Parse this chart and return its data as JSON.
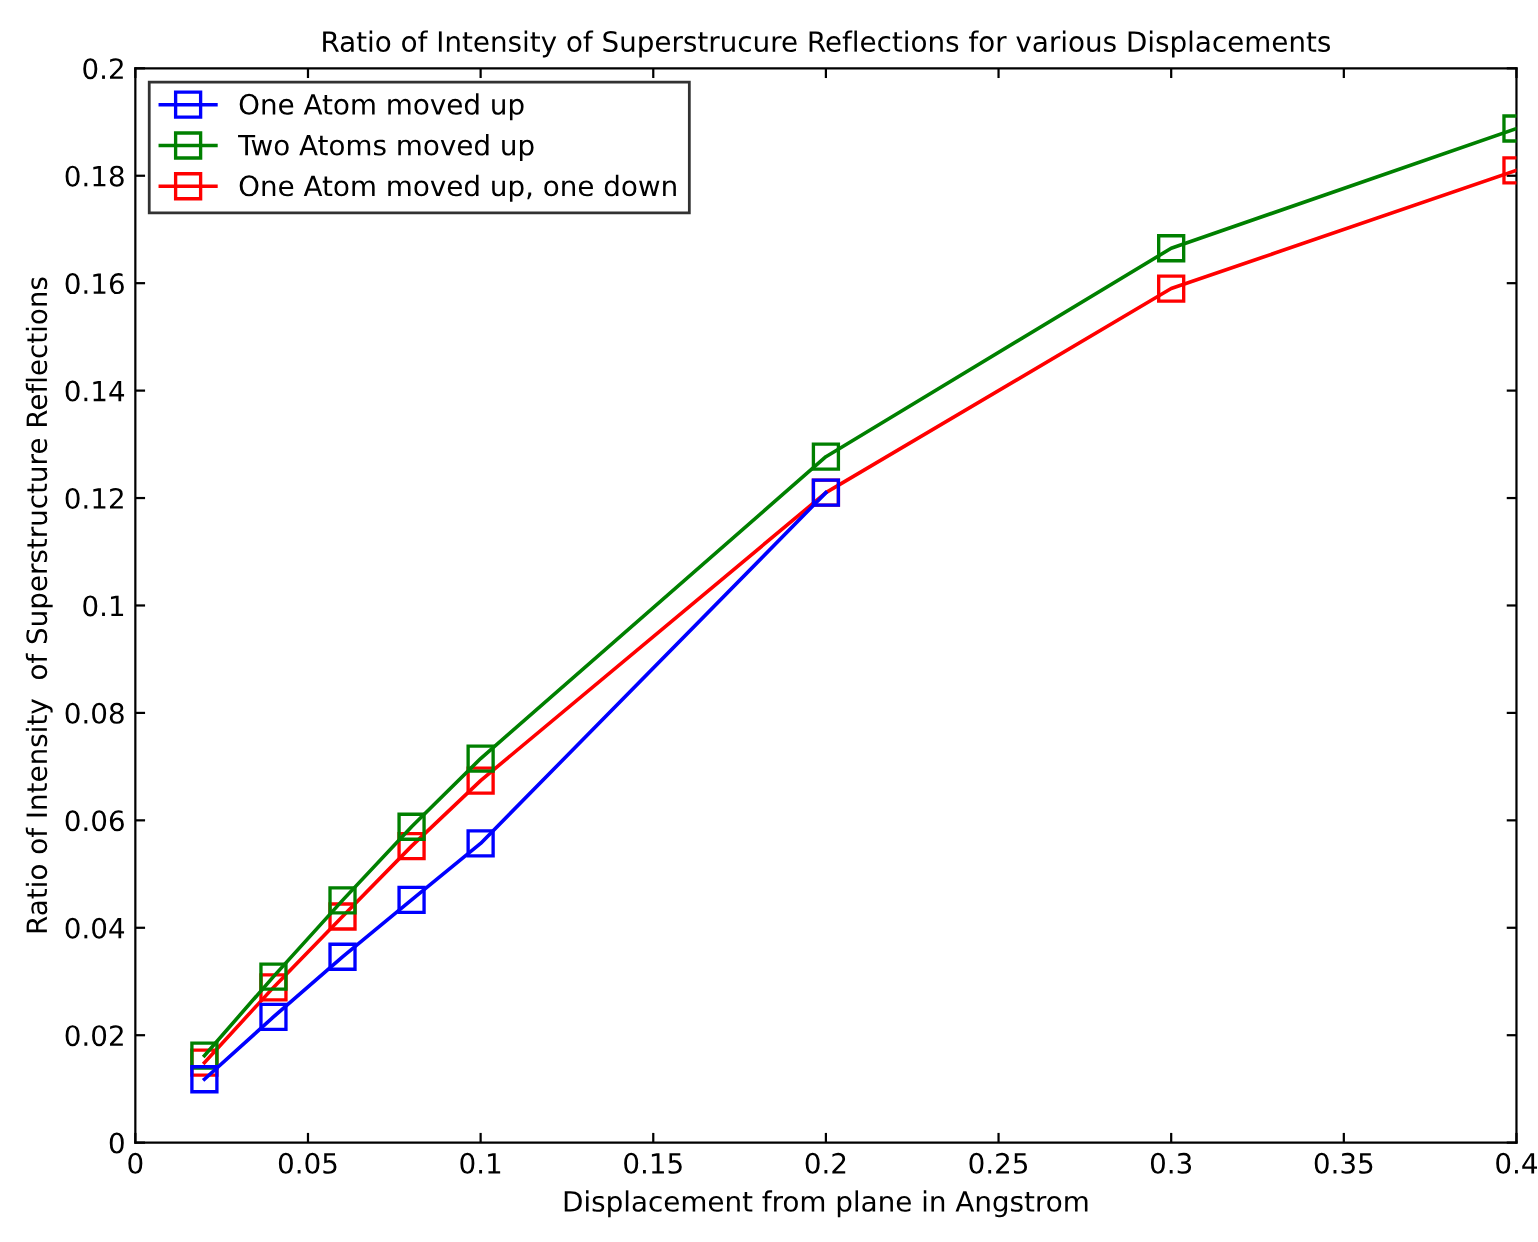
{
  "chart_data": {
    "type": "line",
    "title": "Ratio of Intensity of Superstrucure Reflections for various Displacements",
    "xlabel": "Displacement from plane in Angstrom",
    "ylabel": "Ratio of Intensity  of Superstructure Reflections",
    "x": [
      0.02,
      0.04,
      0.06,
      0.08,
      0.1,
      0.2,
      0.3,
      0.4
    ],
    "series": [
      {
        "name": "One Atom moved up",
        "color": "#0000ff",
        "x": [
          0.02,
          0.04,
          0.06,
          0.08,
          0.1,
          0.2
        ],
        "values": [
          0.0118,
          0.0234,
          0.0346,
          0.0452,
          0.0557,
          0.121
        ]
      },
      {
        "name": "Two Atoms moved up",
        "color": "#008000",
        "values": [
          0.0162,
          0.0309,
          0.0451,
          0.0588,
          0.0715,
          0.1277,
          0.1665,
          0.1888
        ]
      },
      {
        "name": "One Atom moved up, one down",
        "color": "#ff0000",
        "values": [
          0.0149,
          0.0289,
          0.0421,
          0.0552,
          0.0674,
          0.121,
          0.159,
          0.181
        ]
      }
    ],
    "xlim": [
      0,
      0.4
    ],
    "xticks": [
      0,
      0.05,
      0.1,
      0.15,
      0.2,
      0.25,
      0.3,
      0.35,
      0.4
    ],
    "ylim": [
      0,
      0.2
    ],
    "yticks": [
      0,
      0.02,
      0.04,
      0.06,
      0.08,
      0.1,
      0.12,
      0.14,
      0.16,
      0.18,
      0.2
    ],
    "marker": "square",
    "line_style": "solid",
    "legend": "top left",
    "grid": false
  }
}
